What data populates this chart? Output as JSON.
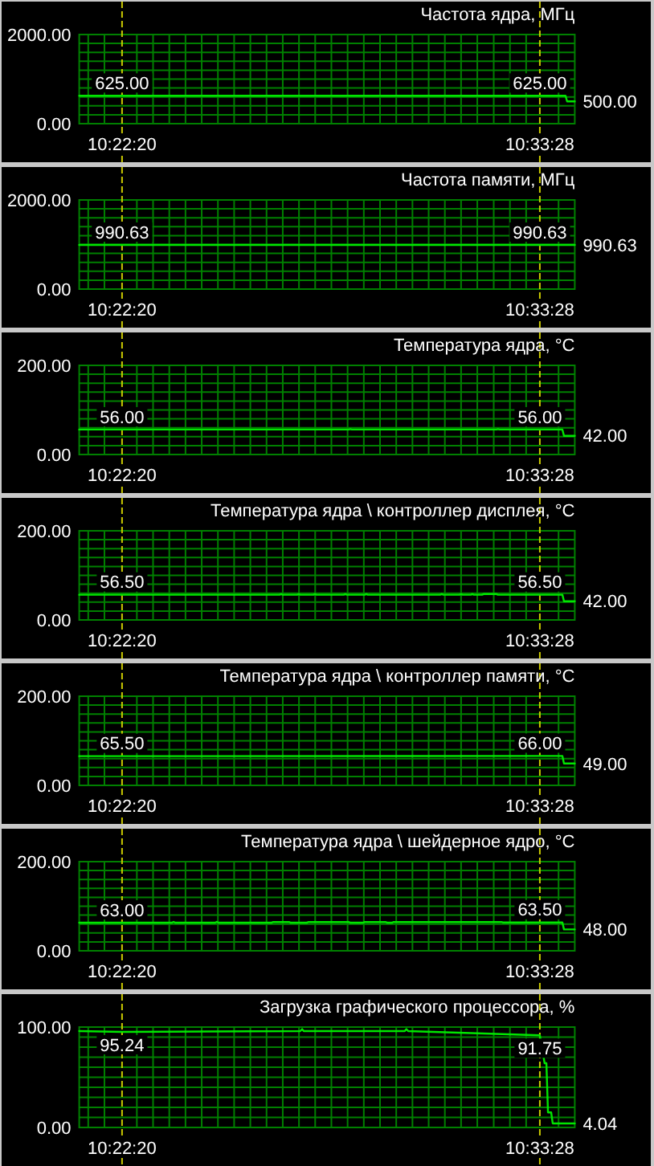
{
  "chart_data": [
    {
      "type": "line",
      "title": "Частота ядра, МГц",
      "xlim": [
        10.3532,
        10.5733
      ],
      "xticks": [
        {
          "value": 10.3572,
          "label": null
        },
        {
          "value": 10.3644,
          "label": null
        },
        {
          "value": 10.37222,
          "label": "10:22:20"
        },
        {
          "value": 10.3788,
          "label": null
        },
        {
          "value": 10.386,
          "label": null
        },
        {
          "value": 10.3932,
          "label": null
        },
        {
          "value": 10.4004,
          "label": null
        },
        {
          "value": 10.4076,
          "label": null
        },
        {
          "value": 10.4148,
          "label": null
        },
        {
          "value": 10.422,
          "label": null
        },
        {
          "value": 10.4292,
          "label": null
        },
        {
          "value": 10.4364,
          "label": null
        },
        {
          "value": 10.4436,
          "label": null
        },
        {
          "value": 10.4508,
          "label": null
        },
        {
          "value": 10.458,
          "label": null
        },
        {
          "value": 10.4652,
          "label": null
        },
        {
          "value": 10.4724,
          "label": null
        },
        {
          "value": 10.4796,
          "label": null
        },
        {
          "value": 10.4868,
          "label": null
        },
        {
          "value": 10.494,
          "label": null
        },
        {
          "value": 10.5012,
          "label": null
        },
        {
          "value": 10.5084,
          "label": null
        },
        {
          "value": 10.5156,
          "label": null
        },
        {
          "value": 10.5228,
          "label": null
        },
        {
          "value": 10.53,
          "label": null
        },
        {
          "value": 10.5373,
          "label": null
        },
        {
          "value": 10.5445,
          "label": null
        },
        {
          "value": 10.5517,
          "label": null
        },
        {
          "value": 10.55778,
          "label": "10:33:28"
        },
        {
          "value": 10.5661,
          "label": null
        }
      ],
      "ylim": [
        0,
        2000
      ],
      "yticks": [
        {
          "value": 0,
          "label": "0.00"
        },
        {
          "value": 200,
          "label": null
        },
        {
          "value": 400,
          "label": null
        },
        {
          "value": 600,
          "label": null
        },
        {
          "value": 800,
          "label": null
        },
        {
          "value": 1000,
          "label": null
        },
        {
          "value": 1200,
          "label": null
        },
        {
          "value": 1400,
          "label": null
        },
        {
          "value": 1600,
          "label": null
        },
        {
          "value": 1800,
          "label": null
        },
        {
          "value": 2000,
          "label": "2000.00"
        }
      ],
      "grid": true,
      "series": [
        {
          "color": "#00e600",
          "x": [
            10.3532,
            10.37222,
            10.55778,
            10.5692,
            10.5699,
            10.5733
          ],
          "values": [
            625,
            625,
            625,
            625,
            500,
            500
          ],
          "value_labels": [
            null,
            "625.00",
            "625.00",
            null,
            null,
            "500.00"
          ]
        }
      ]
    },
    {
      "type": "line",
      "title": "Частота памяти, МГц",
      "xlim": [
        10.3532,
        10.5733
      ],
      "xticks": [
        {
          "value": 10.3572,
          "label": null
        },
        {
          "value": 10.3644,
          "label": null
        },
        {
          "value": 10.37222,
          "label": "10:22:20"
        },
        {
          "value": 10.3788,
          "label": null
        },
        {
          "value": 10.386,
          "label": null
        },
        {
          "value": 10.3932,
          "label": null
        },
        {
          "value": 10.4004,
          "label": null
        },
        {
          "value": 10.4076,
          "label": null
        },
        {
          "value": 10.4148,
          "label": null
        },
        {
          "value": 10.422,
          "label": null
        },
        {
          "value": 10.4292,
          "label": null
        },
        {
          "value": 10.4364,
          "label": null
        },
        {
          "value": 10.4436,
          "label": null
        },
        {
          "value": 10.4508,
          "label": null
        },
        {
          "value": 10.458,
          "label": null
        },
        {
          "value": 10.4652,
          "label": null
        },
        {
          "value": 10.4724,
          "label": null
        },
        {
          "value": 10.4796,
          "label": null
        },
        {
          "value": 10.4868,
          "label": null
        },
        {
          "value": 10.494,
          "label": null
        },
        {
          "value": 10.5012,
          "label": null
        },
        {
          "value": 10.5084,
          "label": null
        },
        {
          "value": 10.5156,
          "label": null
        },
        {
          "value": 10.5228,
          "label": null
        },
        {
          "value": 10.53,
          "label": null
        },
        {
          "value": 10.5373,
          "label": null
        },
        {
          "value": 10.5445,
          "label": null
        },
        {
          "value": 10.5517,
          "label": null
        },
        {
          "value": 10.55778,
          "label": "10:33:28"
        },
        {
          "value": 10.5661,
          "label": null
        }
      ],
      "ylim": [
        0,
        2000
      ],
      "yticks": [
        {
          "value": 0,
          "label": "0.00"
        },
        {
          "value": 200,
          "label": null
        },
        {
          "value": 400,
          "label": null
        },
        {
          "value": 600,
          "label": null
        },
        {
          "value": 800,
          "label": null
        },
        {
          "value": 1000,
          "label": null
        },
        {
          "value": 1200,
          "label": null
        },
        {
          "value": 1400,
          "label": null
        },
        {
          "value": 1600,
          "label": null
        },
        {
          "value": 1800,
          "label": null
        },
        {
          "value": 2000,
          "label": "2000.00"
        }
      ],
      "grid": true,
      "series": [
        {
          "color": "#00e600",
          "x": [
            10.3532,
            10.37222,
            10.55778,
            10.5733
          ],
          "values": [
            990.63,
            990.63,
            990.63,
            990.63
          ],
          "value_labels": [
            null,
            "990.63",
            "990.63",
            "990.63"
          ]
        }
      ]
    },
    {
      "type": "line",
      "title": "Температура ядра, °C",
      "xlim": [
        10.3532,
        10.5733
      ],
      "xticks": [
        {
          "value": 10.3572,
          "label": null
        },
        {
          "value": 10.3644,
          "label": null
        },
        {
          "value": 10.37222,
          "label": "10:22:20"
        },
        {
          "value": 10.3788,
          "label": null
        },
        {
          "value": 10.386,
          "label": null
        },
        {
          "value": 10.3932,
          "label": null
        },
        {
          "value": 10.4004,
          "label": null
        },
        {
          "value": 10.4076,
          "label": null
        },
        {
          "value": 10.4148,
          "label": null
        },
        {
          "value": 10.422,
          "label": null
        },
        {
          "value": 10.4292,
          "label": null
        },
        {
          "value": 10.4364,
          "label": null
        },
        {
          "value": 10.4436,
          "label": null
        },
        {
          "value": 10.4508,
          "label": null
        },
        {
          "value": 10.458,
          "label": null
        },
        {
          "value": 10.4652,
          "label": null
        },
        {
          "value": 10.4724,
          "label": null
        },
        {
          "value": 10.4796,
          "label": null
        },
        {
          "value": 10.4868,
          "label": null
        },
        {
          "value": 10.494,
          "label": null
        },
        {
          "value": 10.5012,
          "label": null
        },
        {
          "value": 10.5084,
          "label": null
        },
        {
          "value": 10.5156,
          "label": null
        },
        {
          "value": 10.5228,
          "label": null
        },
        {
          "value": 10.53,
          "label": null
        },
        {
          "value": 10.5373,
          "label": null
        },
        {
          "value": 10.5445,
          "label": null
        },
        {
          "value": 10.5517,
          "label": null
        },
        {
          "value": 10.55778,
          "label": "10:33:28"
        },
        {
          "value": 10.5661,
          "label": null
        }
      ],
      "ylim": [
        0,
        200
      ],
      "yticks": [
        {
          "value": 0,
          "label": "0.00"
        },
        {
          "value": 20,
          "label": null
        },
        {
          "value": 40,
          "label": null
        },
        {
          "value": 60,
          "label": null
        },
        {
          "value": 80,
          "label": null
        },
        {
          "value": 100,
          "label": null
        },
        {
          "value": 120,
          "label": null
        },
        {
          "value": 140,
          "label": null
        },
        {
          "value": 160,
          "label": null
        },
        {
          "value": 180,
          "label": null
        },
        {
          "value": 200,
          "label": "200.00"
        }
      ],
      "grid": true,
      "series": [
        {
          "color": "#00e600",
          "x": [
            10.3532,
            10.37222,
            10.4729,
            10.4736,
            10.4743,
            10.5385,
            10.5392,
            10.5399,
            10.55778,
            10.5678,
            10.5685,
            10.5733
          ],
          "values": [
            56,
            56,
            56,
            57,
            56,
            56,
            57,
            56,
            56,
            56,
            42,
            42
          ],
          "value_labels": [
            null,
            "56.00",
            null,
            null,
            null,
            null,
            null,
            null,
            "56.00",
            null,
            null,
            "42.00"
          ]
        }
      ]
    },
    {
      "type": "line",
      "title": "Температура ядра \\ контроллер дисплея, °C",
      "xlim": [
        10.3532,
        10.5733
      ],
      "xticks": [
        {
          "value": 10.3572,
          "label": null
        },
        {
          "value": 10.3644,
          "label": null
        },
        {
          "value": 10.37222,
          "label": "10:22:20"
        },
        {
          "value": 10.3788,
          "label": null
        },
        {
          "value": 10.386,
          "label": null
        },
        {
          "value": 10.3932,
          "label": null
        },
        {
          "value": 10.4004,
          "label": null
        },
        {
          "value": 10.4076,
          "label": null
        },
        {
          "value": 10.4148,
          "label": null
        },
        {
          "value": 10.422,
          "label": null
        },
        {
          "value": 10.4292,
          "label": null
        },
        {
          "value": 10.4364,
          "label": null
        },
        {
          "value": 10.4436,
          "label": null
        },
        {
          "value": 10.4508,
          "label": null
        },
        {
          "value": 10.458,
          "label": null
        },
        {
          "value": 10.4652,
          "label": null
        },
        {
          "value": 10.4724,
          "label": null
        },
        {
          "value": 10.4796,
          "label": null
        },
        {
          "value": 10.4868,
          "label": null
        },
        {
          "value": 10.494,
          "label": null
        },
        {
          "value": 10.5012,
          "label": null
        },
        {
          "value": 10.5084,
          "label": null
        },
        {
          "value": 10.5156,
          "label": null
        },
        {
          "value": 10.5228,
          "label": null
        },
        {
          "value": 10.53,
          "label": null
        },
        {
          "value": 10.5373,
          "label": null
        },
        {
          "value": 10.5445,
          "label": null
        },
        {
          "value": 10.5517,
          "label": null
        },
        {
          "value": 10.55778,
          "label": "10:33:28"
        },
        {
          "value": 10.5661,
          "label": null
        }
      ],
      "ylim": [
        0,
        200
      ],
      "yticks": [
        {
          "value": 0,
          "label": "0.00"
        },
        {
          "value": 20,
          "label": null
        },
        {
          "value": 40,
          "label": null
        },
        {
          "value": 60,
          "label": null
        },
        {
          "value": 80,
          "label": null
        },
        {
          "value": 100,
          "label": null
        },
        {
          "value": 120,
          "label": null
        },
        {
          "value": 140,
          "label": null
        },
        {
          "value": 160,
          "label": null
        },
        {
          "value": 180,
          "label": null
        },
        {
          "value": 200,
          "label": "200.00"
        }
      ],
      "grid": true,
      "series": [
        {
          "color": "#00e600",
          "x": [
            10.3532,
            10.37222,
            10.4422,
            10.4429,
            10.4436,
            10.45,
            10.4507,
            10.4514,
            10.4572,
            10.4579,
            10.4586,
            10.4707,
            10.4714,
            10.4721,
            10.48,
            10.4807,
            10.4814,
            10.5135,
            10.5142,
            10.515,
            10.5221,
            10.5228,
            10.5235,
            10.5271,
            10.5278,
            10.5285,
            10.5321,
            10.5328,
            10.5385,
            10.5392,
            10.55778,
            10.5678,
            10.5685,
            10.5733
          ],
          "values": [
            56.5,
            56.5,
            56.5,
            58,
            56.5,
            56.5,
            58,
            56.5,
            56.5,
            58,
            56.5,
            56.5,
            58,
            56.5,
            56.5,
            58,
            56.5,
            56.5,
            58,
            56.5,
            56.5,
            58,
            56.5,
            56.5,
            58,
            56.5,
            56.5,
            58,
            58,
            56.5,
            56.5,
            56.5,
            42,
            42
          ],
          "value_labels": [
            null,
            "56.50",
            null,
            null,
            null,
            null,
            null,
            null,
            null,
            null,
            null,
            null,
            null,
            null,
            null,
            null,
            null,
            null,
            null,
            null,
            null,
            null,
            null,
            null,
            null,
            null,
            null,
            null,
            null,
            null,
            "56.50",
            null,
            null,
            "42.00"
          ]
        }
      ]
    },
    {
      "type": "line",
      "title": "Температура ядра \\ контроллер памяти, °C",
      "xlim": [
        10.3532,
        10.5733
      ],
      "xticks": [
        {
          "value": 10.3572,
          "label": null
        },
        {
          "value": 10.3644,
          "label": null
        },
        {
          "value": 10.37222,
          "label": "10:22:20"
        },
        {
          "value": 10.3788,
          "label": null
        },
        {
          "value": 10.386,
          "label": null
        },
        {
          "value": 10.3932,
          "label": null
        },
        {
          "value": 10.4004,
          "label": null
        },
        {
          "value": 10.4076,
          "label": null
        },
        {
          "value": 10.4148,
          "label": null
        },
        {
          "value": 10.422,
          "label": null
        },
        {
          "value": 10.4292,
          "label": null
        },
        {
          "value": 10.4364,
          "label": null
        },
        {
          "value": 10.4436,
          "label": null
        },
        {
          "value": 10.4508,
          "label": null
        },
        {
          "value": 10.458,
          "label": null
        },
        {
          "value": 10.4652,
          "label": null
        },
        {
          "value": 10.4724,
          "label": null
        },
        {
          "value": 10.4796,
          "label": null
        },
        {
          "value": 10.4868,
          "label": null
        },
        {
          "value": 10.494,
          "label": null
        },
        {
          "value": 10.5012,
          "label": null
        },
        {
          "value": 10.5084,
          "label": null
        },
        {
          "value": 10.5156,
          "label": null
        },
        {
          "value": 10.5228,
          "label": null
        },
        {
          "value": 10.53,
          "label": null
        },
        {
          "value": 10.5373,
          "label": null
        },
        {
          "value": 10.5445,
          "label": null
        },
        {
          "value": 10.5517,
          "label": null
        },
        {
          "value": 10.55778,
          "label": "10:33:28"
        },
        {
          "value": 10.5661,
          "label": null
        }
      ],
      "ylim": [
        0,
        200
      ],
      "yticks": [
        {
          "value": 0,
          "label": "0.00"
        },
        {
          "value": 20,
          "label": null
        },
        {
          "value": 40,
          "label": null
        },
        {
          "value": 60,
          "label": null
        },
        {
          "value": 80,
          "label": null
        },
        {
          "value": 100,
          "label": null
        },
        {
          "value": 120,
          "label": null
        },
        {
          "value": 140,
          "label": null
        },
        {
          "value": 160,
          "label": null
        },
        {
          "value": 180,
          "label": null
        },
        {
          "value": 200,
          "label": "200.00"
        }
      ],
      "grid": true,
      "series": [
        {
          "color": "#00e600",
          "x": [
            10.3532,
            10.37222,
            10.55778,
            10.5678,
            10.5685,
            10.5733
          ],
          "values": [
            65.5,
            65.5,
            66,
            66,
            49,
            49
          ],
          "value_labels": [
            null,
            "65.50",
            "66.00",
            null,
            null,
            "49.00"
          ]
        }
      ]
    },
    {
      "type": "line",
      "title": "Температура ядра \\ шейдерное ядро, °C",
      "xlim": [
        10.3532,
        10.5733
      ],
      "xticks": [
        {
          "value": 10.3572,
          "label": null
        },
        {
          "value": 10.3644,
          "label": null
        },
        {
          "value": 10.37222,
          "label": "10:22:20"
        },
        {
          "value": 10.3788,
          "label": null
        },
        {
          "value": 10.386,
          "label": null
        },
        {
          "value": 10.3932,
          "label": null
        },
        {
          "value": 10.4004,
          "label": null
        },
        {
          "value": 10.4076,
          "label": null
        },
        {
          "value": 10.4148,
          "label": null
        },
        {
          "value": 10.422,
          "label": null
        },
        {
          "value": 10.4292,
          "label": null
        },
        {
          "value": 10.4364,
          "label": null
        },
        {
          "value": 10.4436,
          "label": null
        },
        {
          "value": 10.4508,
          "label": null
        },
        {
          "value": 10.458,
          "label": null
        },
        {
          "value": 10.4652,
          "label": null
        },
        {
          "value": 10.4724,
          "label": null
        },
        {
          "value": 10.4796,
          "label": null
        },
        {
          "value": 10.4868,
          "label": null
        },
        {
          "value": 10.494,
          "label": null
        },
        {
          "value": 10.5012,
          "label": null
        },
        {
          "value": 10.5084,
          "label": null
        },
        {
          "value": 10.5156,
          "label": null
        },
        {
          "value": 10.5228,
          "label": null
        },
        {
          "value": 10.53,
          "label": null
        },
        {
          "value": 10.5373,
          "label": null
        },
        {
          "value": 10.5445,
          "label": null
        },
        {
          "value": 10.5517,
          "label": null
        },
        {
          "value": 10.55778,
          "label": "10:33:28"
        },
        {
          "value": 10.5661,
          "label": null
        }
      ],
      "ylim": [
        0,
        200
      ],
      "yticks": [
        {
          "value": 0,
          "label": "0.00"
        },
        {
          "value": 20,
          "label": null
        },
        {
          "value": 40,
          "label": null
        },
        {
          "value": 60,
          "label": null
        },
        {
          "value": 80,
          "label": null
        },
        {
          "value": 100,
          "label": null
        },
        {
          "value": 120,
          "label": null
        },
        {
          "value": 140,
          "label": null
        },
        {
          "value": 160,
          "label": null
        },
        {
          "value": 180,
          "label": null
        },
        {
          "value": 200,
          "label": "200.00"
        }
      ],
      "grid": true,
      "series": [
        {
          "color": "#00e600",
          "x": [
            10.3532,
            10.37222,
            10.3944,
            10.3951,
            10.3958,
            10.4136,
            10.4143,
            10.415,
            10.4386,
            10.4393,
            10.4464,
            10.4471,
            10.4543,
            10.455,
            10.4729,
            10.4736,
            10.4793,
            10.48,
            10.4893,
            10.49,
            10.4921,
            10.4928,
            10.5407,
            10.5414,
            10.55778,
            10.5678,
            10.5685,
            10.5733
          ],
          "values": [
            63,
            63,
            63,
            65,
            63,
            63,
            65,
            63,
            63,
            64.5,
            64.5,
            63,
            63,
            64.5,
            64.5,
            63,
            63,
            64.5,
            64.5,
            63,
            63,
            64.5,
            64.5,
            63.5,
            63.5,
            63.5,
            48,
            48
          ],
          "value_labels": [
            null,
            "63.00",
            null,
            null,
            null,
            null,
            null,
            null,
            null,
            null,
            null,
            null,
            null,
            null,
            null,
            null,
            null,
            null,
            null,
            null,
            null,
            null,
            null,
            null,
            "63.50",
            null,
            null,
            "48.00"
          ]
        }
      ]
    },
    {
      "type": "line",
      "title": "Загрузка графического процессора, %",
      "xlim": [
        10.3532,
        10.5733
      ],
      "xticks": [
        {
          "value": 10.3572,
          "label": null
        },
        {
          "value": 10.3644,
          "label": null
        },
        {
          "value": 10.37222,
          "label": "10:22:20"
        },
        {
          "value": 10.3788,
          "label": null
        },
        {
          "value": 10.386,
          "label": null
        },
        {
          "value": 10.3932,
          "label": null
        },
        {
          "value": 10.4004,
          "label": null
        },
        {
          "value": 10.4076,
          "label": null
        },
        {
          "value": 10.4148,
          "label": null
        },
        {
          "value": 10.422,
          "label": null
        },
        {
          "value": 10.4292,
          "label": null
        },
        {
          "value": 10.4364,
          "label": null
        },
        {
          "value": 10.4436,
          "label": null
        },
        {
          "value": 10.4508,
          "label": null
        },
        {
          "value": 10.458,
          "label": null
        },
        {
          "value": 10.4652,
          "label": null
        },
        {
          "value": 10.4724,
          "label": null
        },
        {
          "value": 10.4796,
          "label": null
        },
        {
          "value": 10.4868,
          "label": null
        },
        {
          "value": 10.494,
          "label": null
        },
        {
          "value": 10.5012,
          "label": null
        },
        {
          "value": 10.5084,
          "label": null
        },
        {
          "value": 10.5156,
          "label": null
        },
        {
          "value": 10.5228,
          "label": null
        },
        {
          "value": 10.53,
          "label": null
        },
        {
          "value": 10.5373,
          "label": null
        },
        {
          "value": 10.5445,
          "label": null
        },
        {
          "value": 10.5517,
          "label": null
        },
        {
          "value": 10.55778,
          "label": "10:33:28"
        },
        {
          "value": 10.5661,
          "label": null
        }
      ],
      "ylim": [
        0,
        100
      ],
      "yticks": [
        {
          "value": 0,
          "label": "0.00"
        },
        {
          "value": 10,
          "label": null
        },
        {
          "value": 20,
          "label": null
        },
        {
          "value": 30,
          "label": null
        },
        {
          "value": 40,
          "label": null
        },
        {
          "value": 50,
          "label": null
        },
        {
          "value": 60,
          "label": null
        },
        {
          "value": 70,
          "label": null
        },
        {
          "value": 80,
          "label": null
        },
        {
          "value": 90,
          "label": null
        },
        {
          "value": 100,
          "label": "100.00"
        }
      ],
      "grid": true,
      "series": [
        {
          "color": "#00e600",
          "x": [
            10.3532,
            10.37222,
            10.4514,
            10.4522,
            10.4529,
            10.4978,
            10.4985,
            10.4993,
            10.55778,
            10.5599,
            10.5607,
            10.5614,
            10.5628,
            10.5635,
            10.5733
          ],
          "values": [
            96,
            95.24,
            96,
            98,
            96,
            96,
            98,
            96,
            91.75,
            64,
            64,
            15,
            15,
            4.04,
            4.04
          ],
          "value_labels": [
            null,
            "95.24",
            null,
            null,
            null,
            null,
            null,
            null,
            "91.75",
            null,
            null,
            null,
            null,
            null,
            "4.04"
          ]
        }
      ]
    }
  ]
}
